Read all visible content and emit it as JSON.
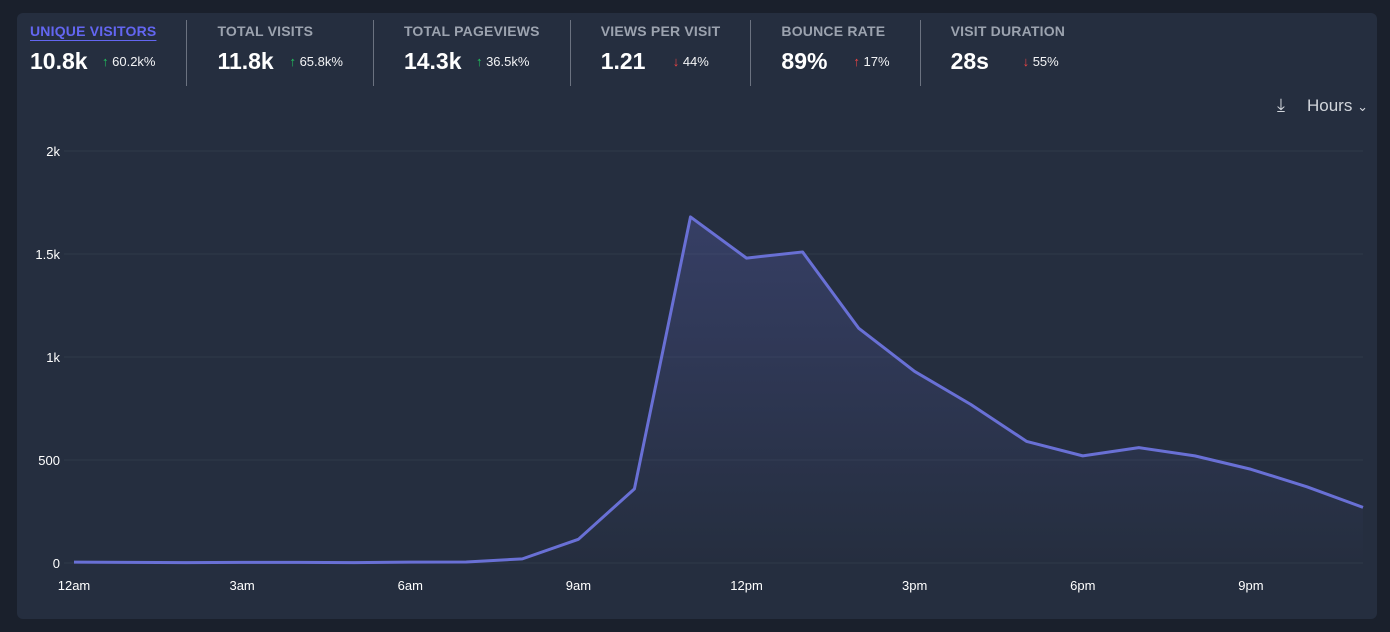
{
  "stats": [
    {
      "label": "UNIQUE VISITORS",
      "value": "10.8k",
      "arrow": "↑",
      "change": "60.2k%",
      "dir": "up-g",
      "active": true
    },
    {
      "label": "TOTAL VISITS",
      "value": "11.8k",
      "arrow": "↑",
      "change": "65.8k%",
      "dir": "up-g"
    },
    {
      "label": "TOTAL PAGEVIEWS",
      "value": "14.3k",
      "arrow": "↑",
      "change": "36.5k%",
      "dir": "up-g"
    },
    {
      "label": "VIEWS PER VISIT",
      "value": "1.21",
      "arrow": "↓",
      "change": "44%",
      "dir": "dn-r"
    },
    {
      "label": "BOUNCE RATE",
      "value": "89%",
      "arrow": "↑",
      "change": "17%",
      "dir": "up-r"
    },
    {
      "label": "VISIT DURATION",
      "value": "28s",
      "arrow": "↓",
      "change": "55%",
      "dir": "dn-r"
    }
  ],
  "controls": {
    "interval": "Hours",
    "chevron": "⌄"
  },
  "chart_data": {
    "type": "line",
    "series": [
      {
        "name": "Unique visitors",
        "color": "#6970d5",
        "values": [
          4,
          3,
          2,
          3,
          3,
          2,
          4,
          5,
          20,
          115,
          360,
          1680,
          1480,
          1510,
          1140,
          930,
          770,
          590,
          520,
          560,
          520,
          455,
          370,
          270
        ]
      }
    ],
    "x": [
      "12am",
      "1am",
      "2am",
      "3am",
      "4am",
      "5am",
      "6am",
      "7am",
      "8am",
      "9am",
      "10am",
      "11am",
      "12pm",
      "1pm",
      "2pm",
      "3pm",
      "4pm",
      "5pm",
      "6pm",
      "7pm",
      "8pm",
      "9pm",
      "10pm",
      "11pm"
    ],
    "xticks": [
      "12am",
      "3am",
      "6am",
      "9am",
      "12pm",
      "3pm",
      "6pm",
      "9pm"
    ],
    "yticks": [
      "0",
      "500",
      "1k",
      "1.5k",
      "2k"
    ],
    "ytick_values": [
      0,
      500,
      1000,
      1500,
      2000
    ],
    "ylim": [
      0,
      2000
    ],
    "grid": true
  }
}
